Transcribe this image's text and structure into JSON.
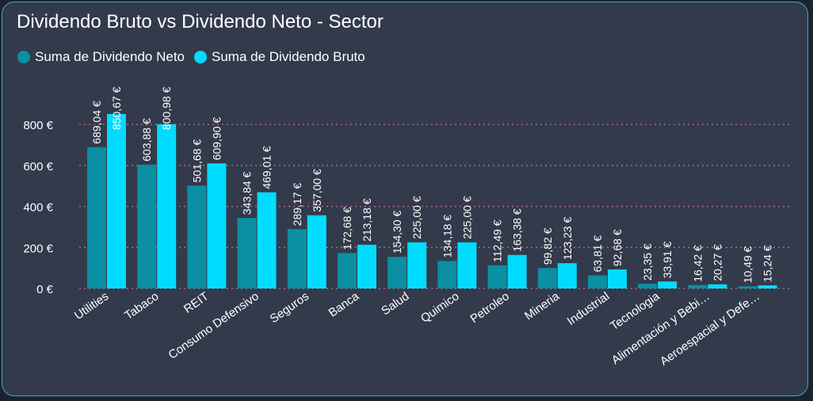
{
  "title": "Dividendo Bruto vs Dividendo Neto - Sector",
  "colors": {
    "neto": "#0a8fa3",
    "bruto": "#00dcff",
    "grid": "#b06b78",
    "text": "#ffffff",
    "background": "#323a4b",
    "border": "#3fa9c0"
  },
  "chart_data": {
    "type": "bar",
    "title": "Dividendo Bruto vs Dividendo Neto - Sector",
    "xlabel": "",
    "ylabel": "",
    "ylim": [
      0,
      900
    ],
    "yticks": [
      0,
      200,
      400,
      600,
      800
    ],
    "ytick_labels": [
      "0 €",
      "200 €",
      "400 €",
      "600 €",
      "800 €"
    ],
    "grid": true,
    "legend_position": "top-left",
    "categories": [
      "Utilities",
      "Tabaco",
      "REIT",
      "Consumo Defensivo",
      "Seguros",
      "Banca",
      "Salud",
      "Quimico",
      "Petroleo",
      "Mineria",
      "Industrial",
      "Tecnologia",
      "Alimentación y Bebi…",
      "Aeroespacial y Defe…"
    ],
    "series": [
      {
        "name": "Suma de Dividendo Neto",
        "values": [
          689.04,
          603.88,
          501.68,
          343.84,
          289.17,
          172.68,
          154.3,
          134.18,
          112.49,
          99.82,
          63.81,
          23.35,
          16.42,
          10.49
        ],
        "labels": [
          "689,04 €",
          "603,88 €",
          "501,68 €",
          "343,84 €",
          "289,17 €",
          "172,68 €",
          "154,30 €",
          "134,18 €",
          "112,49 €",
          "99,82 €",
          "63,81 €",
          "23,35 €",
          "16,42 €",
          "10,49 €"
        ]
      },
      {
        "name": "Suma de Dividendo Bruto",
        "values": [
          850.67,
          800.98,
          609.9,
          469.01,
          357.0,
          213.18,
          225.0,
          225.0,
          163.38,
          123.23,
          92.68,
          33.91,
          20.27,
          15.24
        ],
        "labels": [
          "850,67 €",
          "800,98 €",
          "609,90 €",
          "469,01 €",
          "357,00 €",
          "213,18 €",
          "225,00 €",
          "225,00 €",
          "163,38 €",
          "123,23 €",
          "92,68 €",
          "33,91 €",
          "20,27 €",
          "15,24 €"
        ]
      }
    ]
  }
}
